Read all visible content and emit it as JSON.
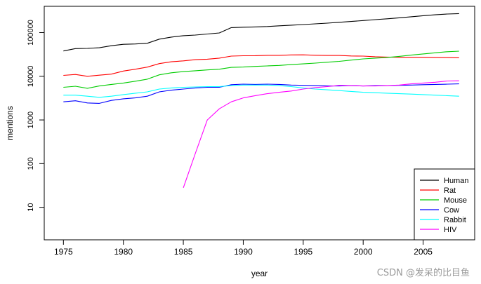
{
  "chart_data": {
    "type": "line",
    "xlabel": "year",
    "ylabel": "mentions",
    "x_scale": "linear",
    "y_scale": "log",
    "xlim": [
      1973.4,
      2009.3
    ],
    "ylim": [
      1.8,
      400000
    ],
    "x_ticks": [
      1975,
      1980,
      1985,
      1990,
      1995,
      2000,
      2005
    ],
    "y_ticks": [
      10,
      100,
      1000,
      10000,
      100000
    ],
    "y_tick_labels": [
      "10",
      "100",
      "1000",
      "10000",
      "100000"
    ],
    "legend_position": "bottom-right",
    "grid": false,
    "series": [
      {
        "name": "Human",
        "color": "#000000",
        "x": [
          1975,
          1976,
          1977,
          1978,
          1979,
          1980,
          1981,
          1982,
          1983,
          1984,
          1985,
          1986,
          1987,
          1988,
          1989,
          1990,
          1991,
          1992,
          1993,
          1994,
          1995,
          1996,
          1997,
          1998,
          1999,
          2000,
          2001,
          2002,
          2003,
          2004,
          2005,
          2006,
          2007,
          2008
        ],
        "y": [
          38000,
          43000,
          43500,
          45000,
          50000,
          54000,
          55000,
          57000,
          71000,
          79000,
          85000,
          88000,
          93000,
          98000,
          130000,
          133000,
          135000,
          138000,
          143000,
          148000,
          153000,
          159000,
          165000,
          172000,
          180000,
          189000,
          198000,
          207000,
          218000,
          231000,
          244000,
          256000,
          266000,
          272000
        ]
      },
      {
        "name": "Rat",
        "color": "#ff0000",
        "x": [
          1975,
          1976,
          1977,
          1978,
          1979,
          1980,
          1981,
          1982,
          1983,
          1984,
          1985,
          1986,
          1987,
          1988,
          1989,
          1990,
          1991,
          1992,
          1993,
          1994,
          1995,
          1996,
          1997,
          1998,
          1999,
          2000,
          2001,
          2002,
          2003,
          2004,
          2005,
          2006,
          2007,
          2008
        ],
        "y": [
          10500,
          11000,
          10000,
          10600,
          11200,
          13200,
          14500,
          16200,
          19500,
          21500,
          22500,
          24000,
          24600,
          26000,
          29000,
          29500,
          29600,
          30200,
          30200,
          30800,
          31000,
          30300,
          30000,
          30000,
          29200,
          29000,
          28000,
          27500,
          27200,
          27200,
          27200,
          27000,
          26800,
          26500
        ]
      },
      {
        "name": "Mouse",
        "color": "#00cc00",
        "x": [
          1975,
          1976,
          1977,
          1978,
          1979,
          1980,
          1981,
          1982,
          1983,
          1984,
          1985,
          1986,
          1987,
          1988,
          1989,
          1990,
          1991,
          1992,
          1993,
          1994,
          1995,
          1996,
          1997,
          1998,
          1999,
          2000,
          2001,
          2002,
          2003,
          2004,
          2005,
          2006,
          2007,
          2008
        ],
        "y": [
          5600,
          5900,
          5300,
          6000,
          6500,
          7000,
          7700,
          8600,
          10800,
          12000,
          12800,
          13400,
          14000,
          14500,
          16000,
          16300,
          16800,
          17300,
          17700,
          18500,
          19200,
          20000,
          21000,
          22000,
          23500,
          25000,
          26000,
          27000,
          28500,
          30500,
          32500,
          34500,
          36500,
          37500
        ]
      },
      {
        "name": "Cow",
        "color": "#0000ff",
        "x": [
          1975,
          1976,
          1977,
          1978,
          1979,
          1980,
          1981,
          1982,
          1983,
          1984,
          1985,
          1986,
          1987,
          1988,
          1989,
          1990,
          1991,
          1992,
          1993,
          1994,
          1995,
          1996,
          1997,
          1998,
          1999,
          2000,
          2001,
          2002,
          2003,
          2004,
          2005,
          2006,
          2007,
          2008
        ],
        "y": [
          2600,
          2750,
          2450,
          2400,
          2800,
          3050,
          3200,
          3500,
          4400,
          4800,
          5100,
          5400,
          5600,
          5600,
          6400,
          6600,
          6500,
          6600,
          6500,
          6300,
          6200,
          6100,
          6000,
          6000,
          6100,
          6000,
          6100,
          6100,
          6200,
          6300,
          6400,
          6500,
          6600,
          6700
        ]
      },
      {
        "name": "Rabbit",
        "color": "#00ffff",
        "x": [
          1975,
          1976,
          1977,
          1978,
          1979,
          1980,
          1981,
          1982,
          1983,
          1984,
          1985,
          1986,
          1987,
          1988,
          1989,
          1990,
          1991,
          1992,
          1993,
          1994,
          1995,
          1996,
          1997,
          1998,
          1999,
          2000,
          2001,
          2002,
          2003,
          2004,
          2005,
          2006,
          2007,
          2008
        ],
        "y": [
          3700,
          3700,
          3500,
          3300,
          3500,
          3800,
          4100,
          4400,
          5100,
          5400,
          5600,
          5700,
          5800,
          5800,
          6100,
          6300,
          6300,
          6300,
          6100,
          5800,
          5400,
          5100,
          4900,
          4700,
          4500,
          4300,
          4200,
          4100,
          4000,
          3900,
          3800,
          3700,
          3600,
          3500
        ]
      },
      {
        "name": "HIV",
        "color": "#ff00ff",
        "x": [
          1985,
          1986,
          1987,
          1988,
          1989,
          1990,
          1991,
          1992,
          1993,
          1994,
          1995,
          1996,
          1997,
          1998,
          1999,
          2000,
          2001,
          2002,
          2003,
          2004,
          2005,
          2006,
          2007,
          2008
        ],
        "y": [
          28,
          170,
          1000,
          1800,
          2600,
          3200,
          3600,
          4000,
          4300,
          4600,
          5100,
          5500,
          5800,
          6200,
          6100,
          6000,
          6000,
          6100,
          6300,
          6700,
          7000,
          7300,
          7800,
          7900
        ]
      }
    ]
  },
  "watermark": "CSDN @发呆的比目鱼"
}
